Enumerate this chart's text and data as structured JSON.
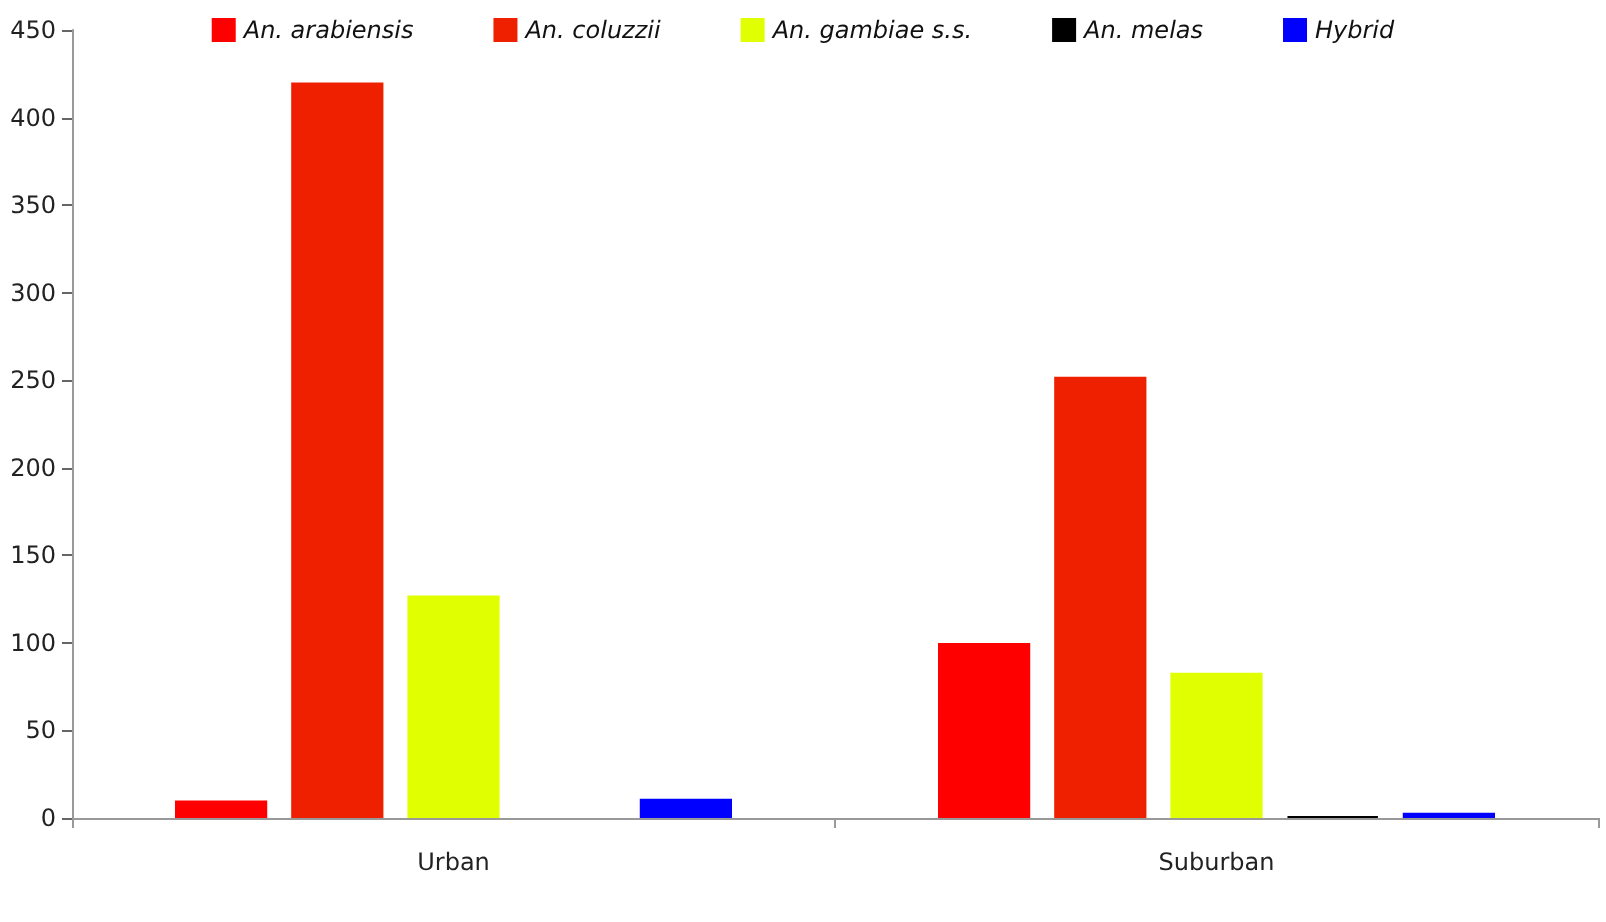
{
  "chart_data": {
    "type": "bar",
    "categories": [
      "Urban",
      "Suburban"
    ],
    "series": [
      {
        "name": "An. arabiensis",
        "color": "#ff0000",
        "values": [
          10,
          100
        ]
      },
      {
        "name": "An. coluzzii",
        "color": "#ee2000",
        "values": [
          420,
          252
        ]
      },
      {
        "name": "An. gambiae s.s.",
        "color": "#e0ff00",
        "values": [
          127,
          83
        ]
      },
      {
        "name": "An. melas",
        "color": "#000000",
        "values": [
          null,
          1
        ]
      },
      {
        "name": "Hybrid",
        "color": "#0000ff",
        "values": [
          11,
          3
        ]
      }
    ],
    "ylim": [
      0,
      450
    ],
    "yticks": [
      0,
      50,
      100,
      150,
      200,
      250,
      300,
      350,
      400,
      450
    ],
    "grid": false,
    "legend": "top"
  }
}
